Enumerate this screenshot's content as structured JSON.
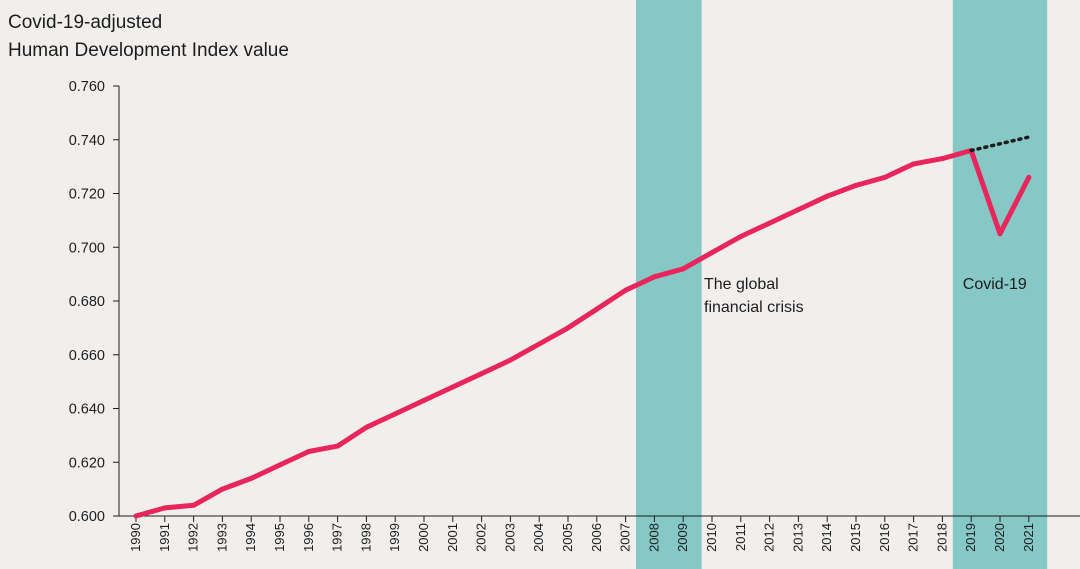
{
  "chart_data": {
    "type": "line",
    "title_lines": [
      "Covid-19-adjusted",
      "Human Development Index value"
    ],
    "xlabel": "",
    "ylabel": "",
    "ylim": [
      0.6,
      0.76
    ],
    "yticks": [
      "0.600",
      "0.620",
      "0.640",
      "0.660",
      "0.680",
      "0.700",
      "0.720",
      "0.740",
      "0.760"
    ],
    "xticks": [
      "1990",
      "1991",
      "1992",
      "1993",
      "1994",
      "1995",
      "1996",
      "1997",
      "1998",
      "1999",
      "2000",
      "2001",
      "2002",
      "2003",
      "2004",
      "2005",
      "2006",
      "2007",
      "2008",
      "2009",
      "2010",
      "2011",
      "2012",
      "2013",
      "2014",
      "2015",
      "2016",
      "2017",
      "2018",
      "2019",
      "2020",
      "2021"
    ],
    "colors": {
      "line": "#e8265b",
      "band": "#86c8c6",
      "projection": "#1d1d1d",
      "background": "#f1efed"
    },
    "series": [
      {
        "x": [
          1990,
          1991,
          1992,
          1993,
          1994,
          1995,
          1996,
          1997,
          1998,
          1999,
          2000,
          2001,
          2002,
          2003,
          2004,
          2005,
          2006,
          2007,
          2008,
          2009,
          2010,
          2011,
          2012,
          2013,
          2014,
          2015,
          2016,
          2017,
          2018,
          2019,
          2020,
          2021
        ],
        "values": [
          0.6,
          0.603,
          0.604,
          0.61,
          0.614,
          0.619,
          0.624,
          0.626,
          0.633,
          0.638,
          0.643,
          0.648,
          0.653,
          0.658,
          0.664,
          0.67,
          0.677,
          0.684,
          0.689,
          0.692,
          0.698,
          0.704,
          0.709,
          0.714,
          0.719,
          0.723,
          0.726,
          0.731,
          0.733,
          0.736,
          0.705,
          0.726
        ]
      }
    ],
    "projection": {
      "x": [
        2019,
        2021
      ],
      "values": [
        0.736,
        0.741
      ]
    },
    "bands": [
      {
        "from": 2008,
        "to": 2009,
        "label_lines": [
          "The global",
          "financial crisis"
        ]
      },
      {
        "from": 2019,
        "to": 2021,
        "label_lines": [
          "Covid-19"
        ]
      }
    ]
  }
}
